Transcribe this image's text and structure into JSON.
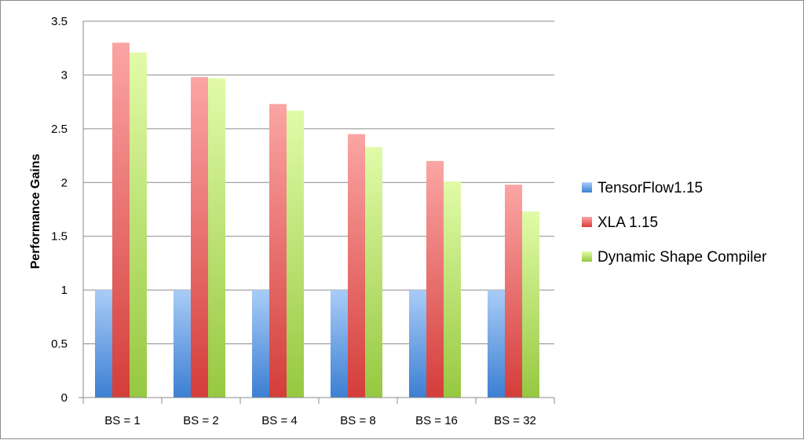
{
  "chart_data": {
    "type": "bar",
    "title": "",
    "xlabel": "",
    "ylabel": "Performance Gains",
    "ylim": [
      0,
      3.5
    ],
    "yticks": [
      "0",
      "0.5",
      "1",
      "1.5",
      "2",
      "2.5",
      "3",
      "3.5"
    ],
    "grid": true,
    "legend_position": "right",
    "categories": [
      "BS = 1",
      "BS = 2",
      "BS = 4",
      "BS = 8",
      "BS = 16",
      "BS = 32"
    ],
    "series": [
      {
        "name": "TensorFlow1.15",
        "color_light": "#a9ccf7",
        "color_dark": "#3c7fd2",
        "values": [
          1,
          1,
          1,
          1,
          1,
          1
        ]
      },
      {
        "name": "XLA 1.15",
        "color_light": "#fba5a4",
        "color_dark": "#d43d3a",
        "values": [
          3.3,
          2.98,
          2.73,
          2.45,
          2.2,
          1.98
        ]
      },
      {
        "name": "Dynamic Shape Compiler",
        "color_light": "#e1fba8",
        "color_dark": "#96c840",
        "values": [
          3.21,
          2.97,
          2.67,
          2.33,
          2.01,
          1.73
        ]
      }
    ]
  }
}
